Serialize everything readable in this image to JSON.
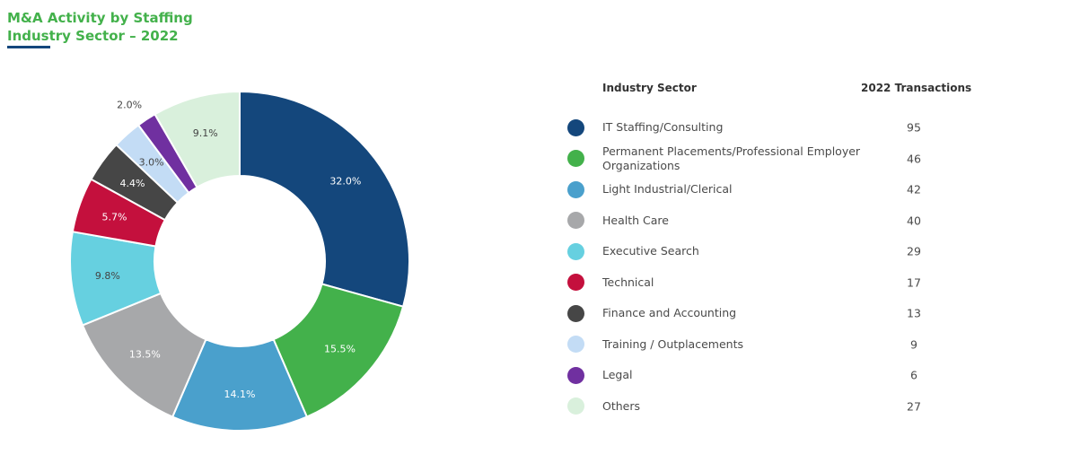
{
  "header": {
    "title_line1": "M&A Activity by Staffing",
    "title_line2": "Industry Sector – 2022"
  },
  "legend": {
    "sector_header": "Industry Sector",
    "transactions_header": "2022 Transactions"
  },
  "chart_data": {
    "type": "pie",
    "title": "M&A Activity by Staffing Industry Sector – 2022",
    "categories": [
      "IT Staffing/Consulting",
      "Permanent Placements/Professional Employer Organizations",
      "Light Industrial/Clerical",
      "Health Care",
      "Executive Search",
      "Technical",
      "Finance and Accounting",
      "Training / Outplacements",
      "Legal",
      "Others"
    ],
    "values": [
      95,
      46,
      42,
      40,
      29,
      17,
      13,
      9,
      6,
      27
    ],
    "percent_labels": [
      "32.0%",
      "15.5%",
      "14.1%",
      "13.5%",
      "9.8%",
      "5.7%",
      "4.4%",
      "3.0%",
      "2.0%",
      "9.1%"
    ],
    "colors": [
      "#14477c",
      "#43b14b",
      "#4aa0cc",
      "#a7a8aa",
      "#66d0e0",
      "#c4103d",
      "#464646",
      "#c3dcf5",
      "#7030a0",
      "#d9f0dc"
    ],
    "label_colors": [
      "#ffffff",
      "#ffffff",
      "#ffffff",
      "#ffffff",
      "#444444",
      "#ffffff",
      "#ffffff",
      "#444444",
      "#444444",
      "#444444"
    ],
    "legend_position": "right"
  }
}
